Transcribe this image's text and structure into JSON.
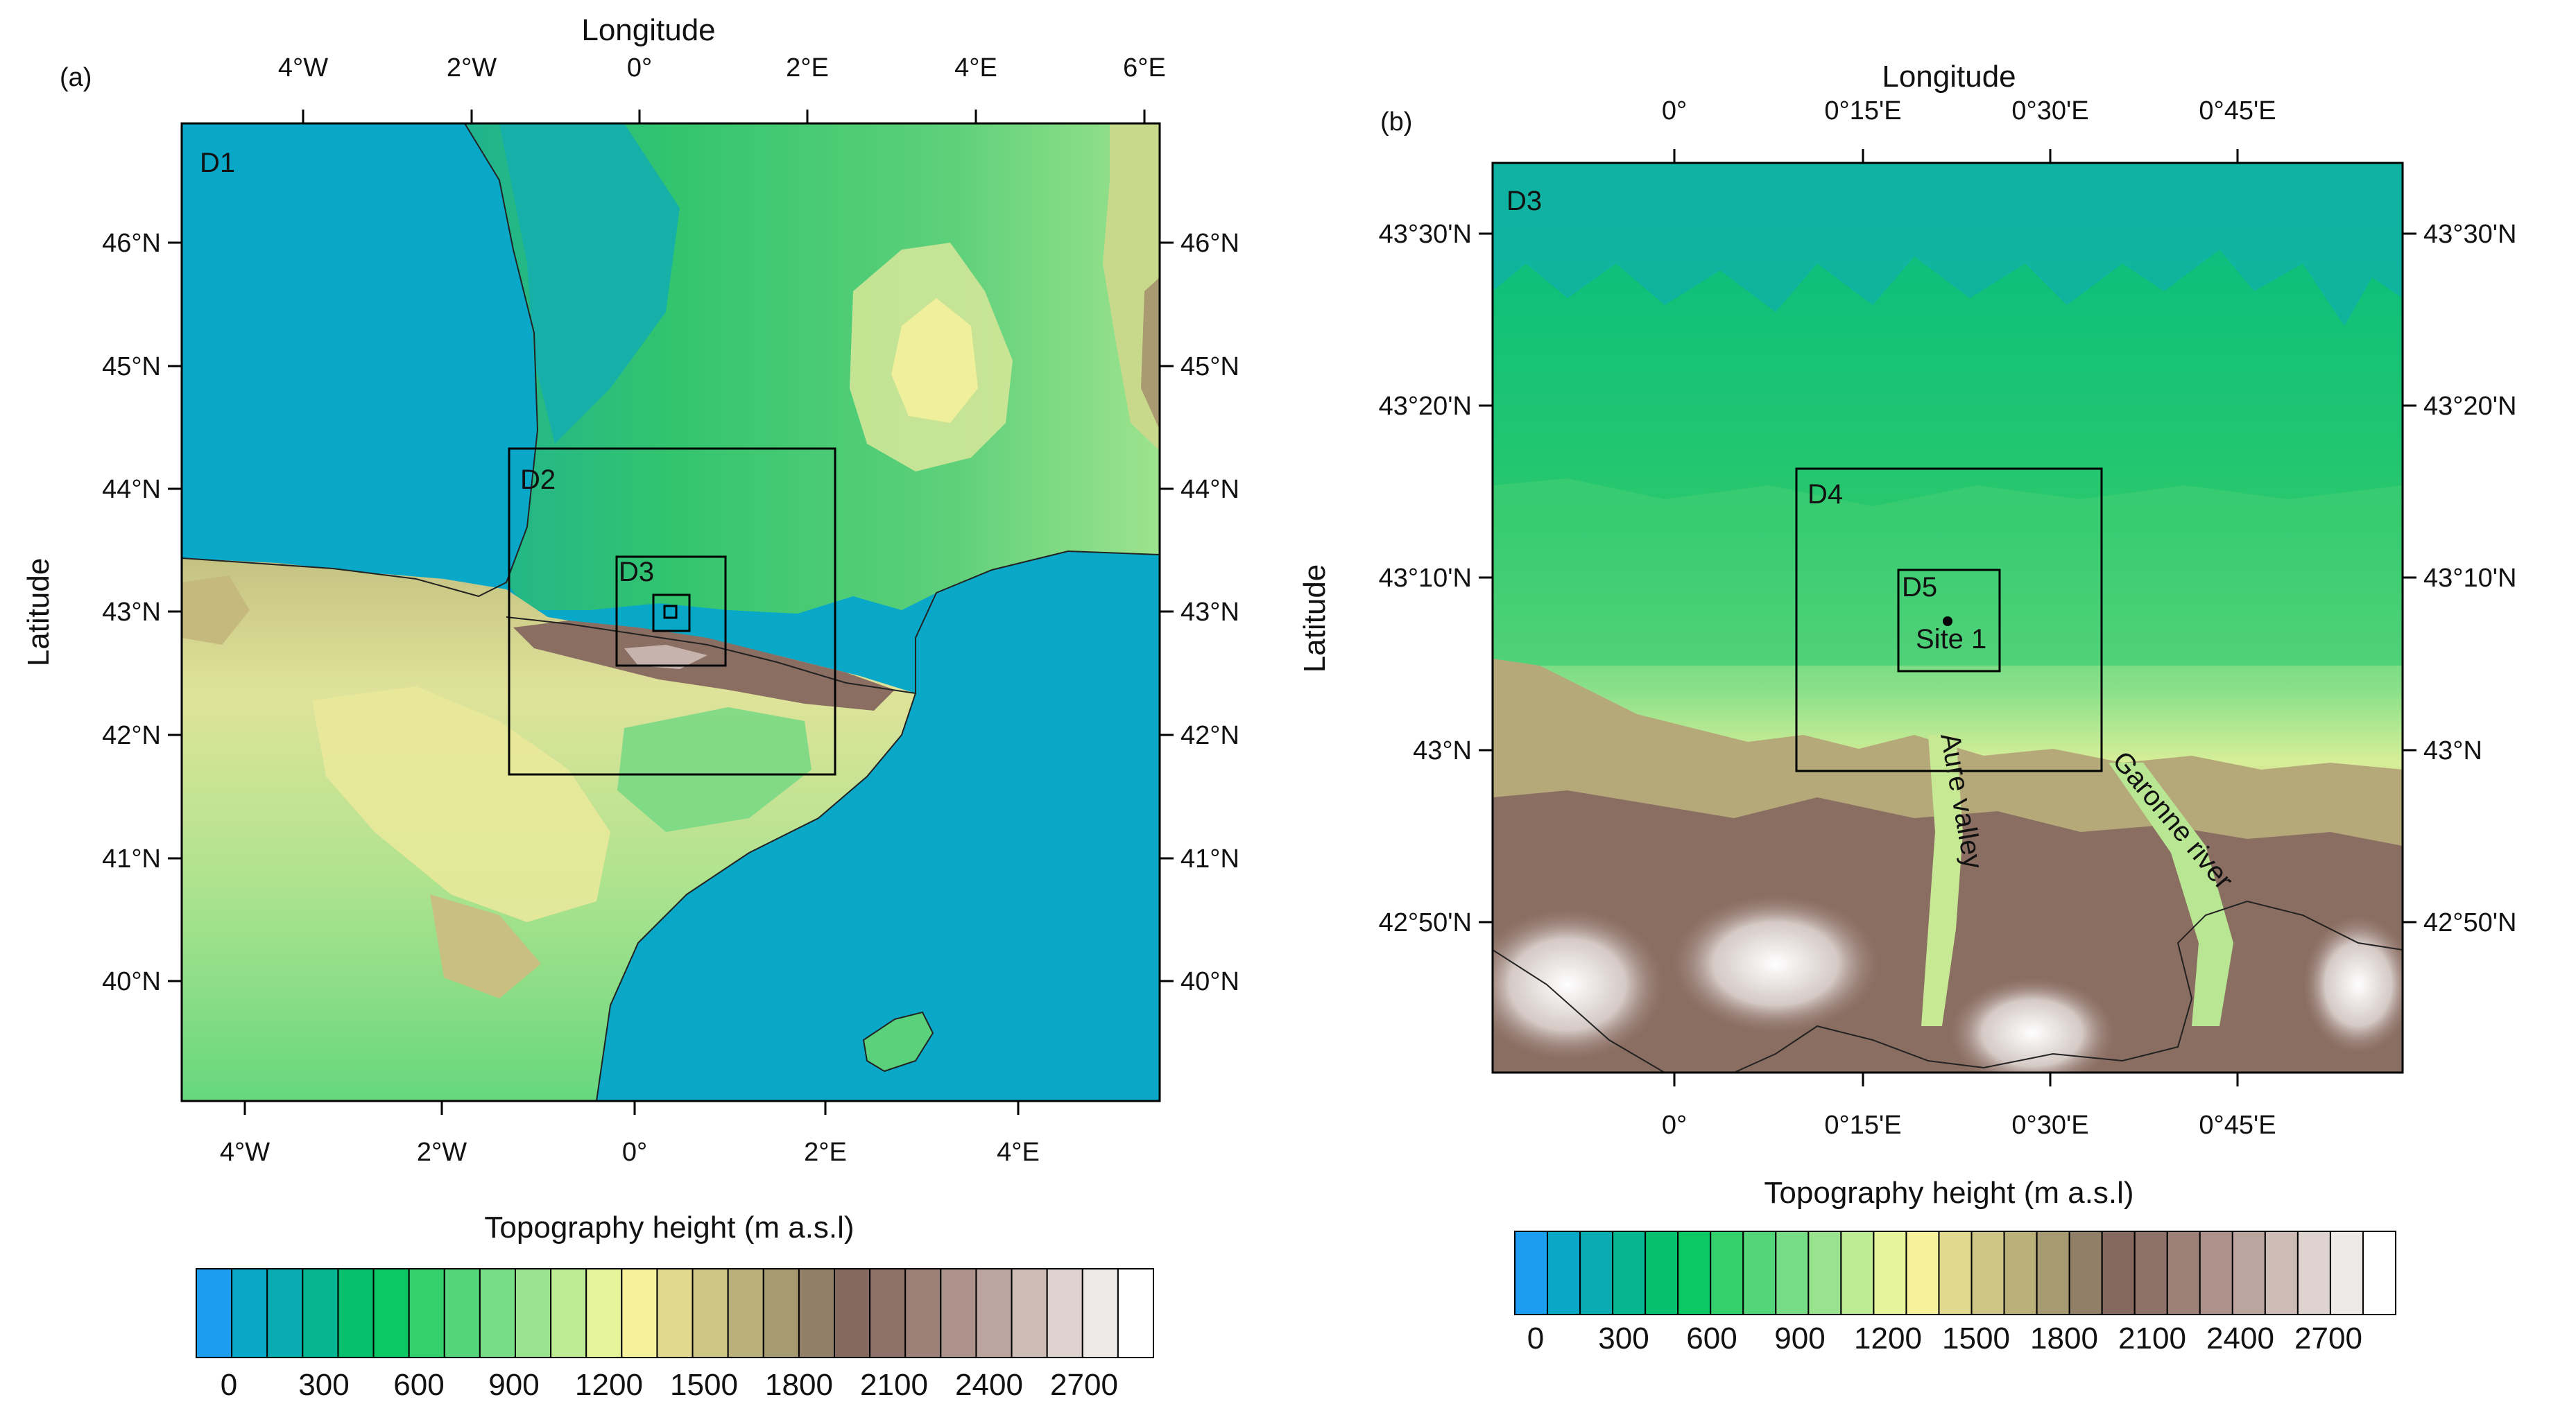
{
  "colors": {
    "bins": [
      "#1c9df0",
      "#0aa8c8",
      "#09acb2",
      "#06b592",
      "#07c06e",
      "#0bc864",
      "#33d06c",
      "#55d57a",
      "#77dc86",
      "#99e38e",
      "#bdec94",
      "#e6f49a",
      "#f5f29b",
      "#e1d98e",
      "#cdc583",
      "#b9b07a",
      "#a59a71",
      "#927f68",
      "#85685e",
      "#8e726a",
      "#9d8179",
      "#ac928b",
      "#bca59f",
      "#cdbbb6",
      "#ded3ce",
      "#eeeae8",
      "#ffffff"
    ],
    "sea": "#0aa8c8"
  },
  "panel_a": {
    "label": "(a)",
    "top_axis_title": "Longitude",
    "left_axis_title": "Latitude",
    "top_ticks": [
      "4°W",
      "2°W",
      "0°",
      "2°E",
      "4°E",
      "6°E"
    ],
    "bottom_ticks": [
      "4°W",
      "2°W",
      "0°",
      "2°E",
      "4°E"
    ],
    "lat_ticks": [
      "46°N",
      "45°N",
      "44°N",
      "43°N",
      "42°N",
      "41°N",
      "40°N"
    ],
    "domains": [
      "D1",
      "D2",
      "D3"
    ]
  },
  "panel_b": {
    "label": "(b)",
    "top_axis_title": "Longitude",
    "left_axis_title": "Latitude",
    "lon_ticks": [
      "0°",
      "0°15'E",
      "0°30'E",
      "0°45'E"
    ],
    "lat_ticks": [
      "43°30'N",
      "43°20'N",
      "43°10'N",
      "43°N",
      "42°50'N"
    ],
    "domains": [
      "D3",
      "D4",
      "D5"
    ],
    "site": "Site 1",
    "annotations": [
      "Aure valley",
      "Garonne river"
    ]
  },
  "colorbar_a": {
    "title": "Topography height (m a.s.l)",
    "labels": [
      "0",
      "300",
      "600",
      "900",
      "1200",
      "1500",
      "1800",
      "2100",
      "2400",
      "2700"
    ]
  },
  "colorbar_b": {
    "title": "Topography height (m a.s.l)",
    "labels": [
      "0",
      "300",
      "600",
      "900",
      "1200",
      "1500",
      "1800",
      "2100",
      "2400",
      "2700"
    ]
  }
}
